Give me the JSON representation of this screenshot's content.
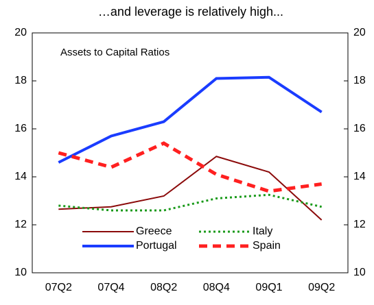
{
  "chart_data": {
    "type": "line",
    "title": "…and leverage is relatively high...",
    "annotation": "Assets to Capital Ratios",
    "categories": [
      "07Q2",
      "07Q4",
      "08Q2",
      "08Q4",
      "09Q1",
      "09Q2"
    ],
    "series": [
      {
        "name": "Greece",
        "color": "#8b0a0a",
        "style": "solid",
        "width": 2,
        "values": [
          12.65,
          12.75,
          13.2,
          14.85,
          14.2,
          12.2
        ]
      },
      {
        "name": "Italy",
        "color": "#1a9a1a",
        "style": "dotted",
        "width": 3,
        "values": [
          12.8,
          12.6,
          12.6,
          13.1,
          13.25,
          12.75
        ]
      },
      {
        "name": "Portugal",
        "color": "#1a3cff",
        "style": "solid",
        "width": 4,
        "values": [
          14.6,
          15.7,
          16.3,
          18.1,
          18.15,
          16.7
        ]
      },
      {
        "name": "Spain",
        "color": "#ff2020",
        "style": "dashed",
        "width": 5,
        "values": [
          15.0,
          14.4,
          15.4,
          14.1,
          13.4,
          13.7
        ]
      }
    ],
    "ylim": [
      10,
      20
    ],
    "yticks": [
      10,
      12,
      14,
      16,
      18,
      20
    ]
  }
}
